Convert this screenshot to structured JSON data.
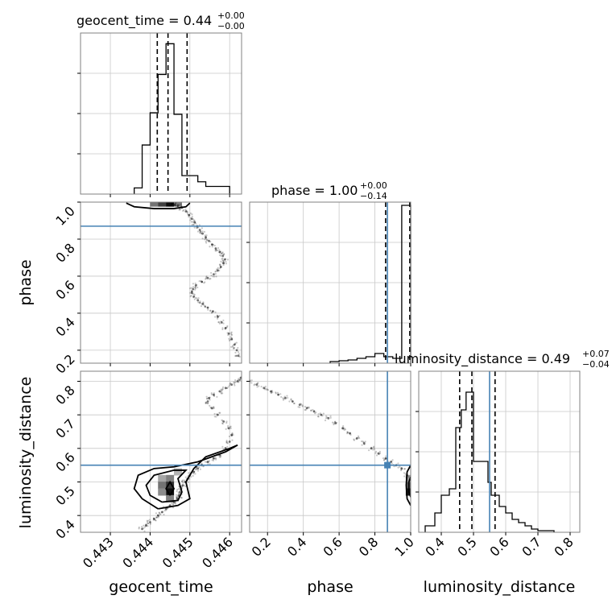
{
  "chart_data": {
    "type": "corner",
    "parameters": [
      {
        "name": "geocent_time",
        "axis_label": "geocent_time",
        "title": "geocent_time = 0.44",
        "title_upper": "+0.00",
        "title_lower": "−0.00",
        "range": [
          0.44225,
          0.4463
        ],
        "ticks": [
          0.443,
          0.444,
          0.445,
          0.446
        ],
        "tick_labels": [
          "0.443",
          "0.444",
          "0.445",
          "0.446"
        ],
        "quantiles": [
          0.44418,
          0.44445,
          0.44493
        ],
        "truth": null,
        "hist_edges": [
          0.4436,
          0.4438,
          0.444,
          0.4442,
          0.4444,
          0.4446,
          0.4448,
          0.445,
          0.4452,
          0.4454,
          0.4456,
          0.4458,
          0.446
        ],
        "hist_counts": [
          0.04,
          0.32,
          0.53,
          0.78,
          0.98,
          0.52,
          0.12,
          0.12,
          0.08,
          0.05,
          0.05,
          0.05
        ],
        "hist_ylim": [
          0,
          1.05
        ]
      },
      {
        "name": "phase",
        "axis_label": "phase",
        "title": "phase = 1.00",
        "title_upper": "+0.00",
        "title_lower": "−0.14",
        "range": [
          0.1,
          1.0
        ],
        "ticks": [
          0.2,
          0.4,
          0.6,
          0.8,
          1.0
        ],
        "tick_labels": [
          "0.2",
          "0.4",
          "0.6",
          "0.8",
          "1.0"
        ],
        "quantiles": [
          0.86,
          0.995
        ],
        "truth": 0.87,
        "hist_edges": [
          0.55,
          0.6,
          0.65,
          0.7,
          0.75,
          0.8,
          0.85,
          0.9,
          0.95,
          1.0
        ],
        "hist_counts": [
          0.01,
          0.015,
          0.02,
          0.03,
          0.04,
          0.06,
          0.04,
          0.03,
          0.98
        ],
        "hist_ylim": [
          0,
          1.0
        ]
      },
      {
        "name": "luminosity_distance",
        "axis_label": "luminosity_distance",
        "title": "luminosity_distance = 0.49",
        "title_upper": "+0.07",
        "title_lower": "−0.04",
        "range": [
          0.33,
          0.83
        ],
        "ticks": [
          0.4,
          0.5,
          0.6,
          0.7,
          0.8
        ],
        "tick_labels": [
          "0.4",
          "0.5",
          "0.6",
          "0.7",
          "0.8"
        ],
        "quantiles": [
          0.457,
          0.495,
          0.567
        ],
        "truth": 0.55,
        "hist_edges": [
          0.35,
          0.38,
          0.4,
          0.425,
          0.445,
          0.462,
          0.477,
          0.5,
          0.525,
          0.545,
          0.555,
          0.565,
          0.58,
          0.6,
          0.62,
          0.64,
          0.66,
          0.68,
          0.7,
          0.72,
          0.75
        ],
        "hist_counts": [
          0.04,
          0.12,
          0.23,
          0.27,
          0.65,
          0.76,
          0.87,
          0.44,
          0.44,
          0.31,
          0.23,
          0.23,
          0.16,
          0.12,
          0.08,
          0.06,
          0.04,
          0.02,
          0.01,
          0.01
        ],
        "hist_ylim": [
          0,
          1.0
        ]
      }
    ],
    "truth_color": "#4682b4",
    "grid": true,
    "scatter_panels": [
      {
        "x_param": "geocent_time",
        "y_param": "phase",
        "ylim": [
          0.13,
          1.0
        ],
        "yticks": [
          0.2,
          0.4,
          0.6,
          0.8,
          1.0
        ],
        "ytick_labels": [
          "0.2",
          "0.4",
          "0.6",
          "0.8",
          "1.0"
        ],
        "points": [
          [
            0.44455,
            0.99
          ],
          [
            0.44462,
            0.985
          ],
          [
            0.4447,
            0.98
          ],
          [
            0.4448,
            0.97
          ],
          [
            0.4449,
            0.95
          ],
          [
            0.44498,
            0.93
          ],
          [
            0.44505,
            0.91
          ],
          [
            0.44512,
            0.89
          ],
          [
            0.44518,
            0.87
          ],
          [
            0.44525,
            0.85
          ],
          [
            0.44532,
            0.83
          ],
          [
            0.4454,
            0.81
          ],
          [
            0.44548,
            0.79
          ],
          [
            0.44556,
            0.77
          ],
          [
            0.44565,
            0.75
          ],
          [
            0.44575,
            0.73
          ],
          [
            0.44583,
            0.71
          ],
          [
            0.44588,
            0.69
          ],
          [
            0.44585,
            0.67
          ],
          [
            0.44578,
            0.65
          ],
          [
            0.4457,
            0.63
          ],
          [
            0.4456,
            0.61
          ],
          [
            0.44545,
            0.59
          ],
          [
            0.4453,
            0.57
          ],
          [
            0.44515,
            0.55
          ],
          [
            0.44508,
            0.53
          ],
          [
            0.44505,
            0.51
          ],
          [
            0.4451,
            0.49
          ],
          [
            0.4452,
            0.47
          ],
          [
            0.44532,
            0.45
          ],
          [
            0.44545,
            0.43
          ],
          [
            0.44558,
            0.41
          ],
          [
            0.4457,
            0.38
          ],
          [
            0.4458,
            0.35
          ],
          [
            0.4459,
            0.32
          ],
          [
            0.44598,
            0.29
          ],
          [
            0.44605,
            0.26
          ],
          [
            0.44612,
            0.23
          ],
          [
            0.44618,
            0.2
          ],
          [
            0.44622,
            0.17
          ]
        ],
        "density_cells": [
          [
            0.4441,
            0.995,
            0.55
          ],
          [
            0.4443,
            0.995,
            0.75
          ],
          [
            0.4445,
            0.995,
            0.95
          ],
          [
            0.4447,
            0.995,
            0.5
          ]
        ],
        "contours": [
          [
            [
              0.4434,
              0.995
            ],
            [
              0.4436,
              0.975
            ],
            [
              0.4441,
              0.965
            ],
            [
              0.4446,
              0.965
            ],
            [
              0.4449,
              0.975
            ],
            [
              0.445,
              0.995
            ]
          ]
        ]
      },
      {
        "x_param": "geocent_time",
        "y_param": "luminosity_distance",
        "ylim": [
          0.35,
          0.83
        ],
        "yticks": [
          0.4,
          0.5,
          0.6,
          0.7,
          0.8
        ],
        "ytick_labels": [
          "0.4",
          "0.5",
          "0.6",
          "0.7",
          "0.8"
        ],
        "points": [
          [
            0.4438,
            0.36
          ],
          [
            0.4439,
            0.37
          ],
          [
            0.444,
            0.38
          ],
          [
            0.4441,
            0.39
          ],
          [
            0.4442,
            0.4
          ],
          [
            0.4443,
            0.41
          ],
          [
            0.4444,
            0.42
          ],
          [
            0.4445,
            0.43
          ],
          [
            0.4446,
            0.44
          ],
          [
            0.44468,
            0.45
          ],
          [
            0.44472,
            0.46
          ],
          [
            0.44475,
            0.47
          ],
          [
            0.44478,
            0.48
          ],
          [
            0.44482,
            0.49
          ],
          [
            0.44488,
            0.5
          ],
          [
            0.44495,
            0.51
          ],
          [
            0.445,
            0.52
          ],
          [
            0.4451,
            0.53
          ],
          [
            0.4452,
            0.54
          ],
          [
            0.4453,
            0.55
          ],
          [
            0.44545,
            0.56
          ],
          [
            0.4456,
            0.57
          ],
          [
            0.44575,
            0.58
          ],
          [
            0.4459,
            0.6
          ],
          [
            0.446,
            0.62
          ],
          [
            0.44605,
            0.64
          ],
          [
            0.44598,
            0.66
          ],
          [
            0.44585,
            0.68
          ],
          [
            0.4457,
            0.7
          ],
          [
            0.44555,
            0.72
          ],
          [
            0.44545,
            0.74
          ],
          [
            0.44548,
            0.75
          ],
          [
            0.4456,
            0.76
          ],
          [
            0.44575,
            0.77
          ],
          [
            0.4459,
            0.78
          ],
          [
            0.44605,
            0.79
          ],
          [
            0.4462,
            0.8
          ],
          [
            0.44628,
            0.81
          ]
        ],
        "density_cells": [
          [
            0.4443,
            0.51,
            0.35
          ],
          [
            0.4445,
            0.51,
            0.5
          ],
          [
            0.4443,
            0.49,
            0.55
          ],
          [
            0.4445,
            0.49,
            0.8
          ],
          [
            0.4445,
            0.47,
            0.95
          ],
          [
            0.4443,
            0.47,
            0.45
          ],
          [
            0.4445,
            0.45,
            0.5
          ],
          [
            0.4447,
            0.53,
            0.3
          ]
        ],
        "contours": [
          [
            [
              0.4442,
              0.42
            ],
            [
              0.4447,
              0.43
            ],
            [
              0.445,
              0.45
            ],
            [
              0.4449,
              0.5
            ],
            [
              0.4451,
              0.54
            ],
            [
              0.4454,
              0.575
            ],
            [
              0.446,
              0.6
            ],
            [
              0.4462,
              0.61
            ],
            [
              0.4459,
              0.59
            ],
            [
              0.4452,
              0.56
            ],
            [
              0.4446,
              0.545
            ],
            [
              0.4441,
              0.54
            ],
            [
              0.4437,
              0.52
            ],
            [
              0.4436,
              0.48
            ],
            [
              0.4438,
              0.45
            ],
            [
              0.4442,
              0.42
            ]
          ],
          [
            [
              0.4443,
              0.44
            ],
            [
              0.4447,
              0.445
            ],
            [
              0.4448,
              0.47
            ],
            [
              0.4447,
              0.51
            ],
            [
              0.4449,
              0.535
            ],
            [
              0.4446,
              0.535
            ],
            [
              0.4441,
              0.52
            ],
            [
              0.4439,
              0.49
            ],
            [
              0.444,
              0.46
            ],
            [
              0.4443,
              0.44
            ]
          ],
          [
            [
              0.4445,
              0.46
            ],
            [
              0.4446,
              0.48
            ],
            [
              0.4445,
              0.5
            ],
            [
              0.4444,
              0.48
            ],
            [
              0.4445,
              0.46
            ]
          ]
        ]
      },
      {
        "x_param": "phase",
        "y_param": "luminosity_distance",
        "ylim": [
          0.35,
          0.83
        ],
        "yticks": [
          0.4,
          0.5,
          0.6,
          0.7,
          0.8
        ],
        "ytick_labels": [
          "0.4",
          "0.5",
          "0.6",
          "0.7",
          "0.8"
        ],
        "points": [
          [
            0.1,
            0.8
          ],
          [
            0.14,
            0.79
          ],
          [
            0.18,
            0.78
          ],
          [
            0.22,
            0.77
          ],
          [
            0.26,
            0.76
          ],
          [
            0.3,
            0.75
          ],
          [
            0.34,
            0.74
          ],
          [
            0.38,
            0.73
          ],
          [
            0.42,
            0.72
          ],
          [
            0.46,
            0.71
          ],
          [
            0.5,
            0.7
          ],
          [
            0.54,
            0.69
          ],
          [
            0.58,
            0.675
          ],
          [
            0.62,
            0.66
          ],
          [
            0.66,
            0.645
          ],
          [
            0.7,
            0.63
          ],
          [
            0.74,
            0.615
          ],
          [
            0.78,
            0.6
          ],
          [
            0.82,
            0.585
          ],
          [
            0.86,
            0.57
          ],
          [
            0.89,
            0.56
          ],
          [
            0.92,
            0.55
          ],
          [
            0.95,
            0.54
          ],
          [
            0.98,
            0.52
          ]
        ],
        "density_cells": [
          [
            0.995,
            0.49,
            0.6
          ],
          [
            0.995,
            0.47,
            0.9
          ],
          [
            0.995,
            0.51,
            0.4
          ]
        ],
        "contours": [
          [
            [
              1.0,
              0.43
            ],
            [
              0.98,
              0.45
            ],
            [
              0.975,
              0.49
            ],
            [
              0.98,
              0.53
            ],
            [
              1.0,
              0.55
            ]
          ],
          [
            [
              1.0,
              0.455
            ],
            [
              0.99,
              0.47
            ],
            [
              0.99,
              0.5
            ],
            [
              1.0,
              0.515
            ]
          ]
        ],
        "truth_point": [
          0.87,
          0.55
        ]
      }
    ]
  }
}
